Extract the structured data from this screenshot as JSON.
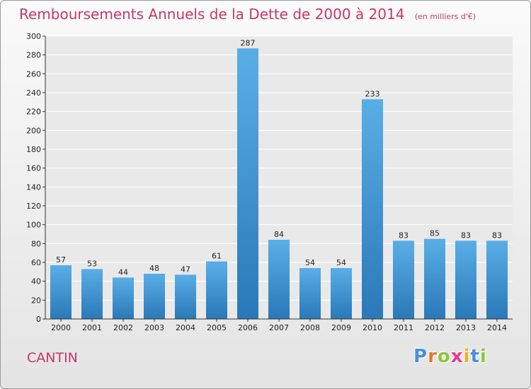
{
  "header": {
    "title": "Remboursements Annuels de la Dette de 2000 à 2014",
    "unit": "(en milliers d'€)"
  },
  "footer": {
    "commune": "CANTIN",
    "logo_letters": [
      "P",
      "r",
      "o",
      "x",
      "i",
      "t",
      "i"
    ],
    "logo_colors": [
      "#4a90d9",
      "#e8762c",
      "#8cc63f",
      "#e83a8c",
      "#f2b01e",
      "#4a90d9",
      "#8cc63f"
    ]
  },
  "colors": {
    "title": "#c8366b",
    "bar_top": "#5aaee6",
    "bar_bottom": "#2a78b8",
    "grid": "#ffffff",
    "axis_text": "#222222"
  },
  "chart_data": {
    "type": "bar",
    "title": "Remboursements Annuels de la Dette de 2000 à 2014",
    "subtitle": "(en milliers d'€)",
    "categories": [
      "2000",
      "2001",
      "2002",
      "2003",
      "2004",
      "2005",
      "2006",
      "2007",
      "2008",
      "2009",
      "2010",
      "2011",
      "2012",
      "2013",
      "2014"
    ],
    "values": [
      57,
      53,
      44,
      48,
      47,
      61,
      287,
      84,
      54,
      54,
      233,
      83,
      85,
      83,
      83
    ],
    "ylim": [
      0,
      300
    ],
    "ytick_step": 20,
    "grid": true,
    "xlabel": "",
    "ylabel": ""
  }
}
